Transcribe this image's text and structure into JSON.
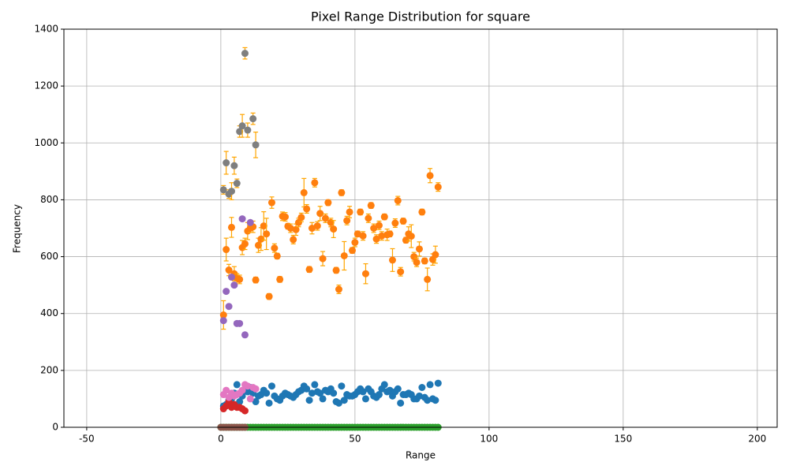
{
  "chart_data": {
    "type": "scatter",
    "title": "Pixel Range Distribution for square",
    "x_label": "Range",
    "y_label": "Frequency",
    "xlim": [
      -58.5,
      207.4
    ],
    "ylim": [
      0,
      1400
    ],
    "xticks": [
      -50,
      0,
      50,
      100,
      150,
      200
    ],
    "yticks": [
      0,
      200,
      400,
      600,
      800,
      1000,
      1200,
      1400
    ],
    "grid": true,
    "errorbar_color": "#ffa500",
    "x": [
      1,
      2,
      3,
      4,
      5,
      6,
      7,
      8,
      9,
      10,
      11,
      12,
      13,
      14,
      15,
      16,
      17,
      18,
      19,
      20,
      21,
      22,
      23,
      24,
      25,
      26,
      27,
      28,
      29,
      30,
      31,
      32,
      33,
      34,
      35,
      36,
      37,
      38,
      39,
      40,
      41,
      42,
      43,
      44,
      45,
      46,
      47,
      48,
      49,
      50,
      51,
      52,
      53,
      54,
      55,
      56,
      57,
      58,
      59,
      60,
      61,
      62,
      63,
      64,
      65,
      66,
      67,
      68,
      69,
      70,
      71,
      72,
      73,
      74,
      75,
      76,
      77,
      78,
      79,
      80,
      81
    ],
    "series": [
      {
        "color": "#1f77b4",
        "values": [
          75,
          80,
          95,
          100,
          120,
          150,
          90,
          110,
          130,
          125,
          140,
          120,
          90,
          110,
          115,
          130,
          120,
          85,
          145,
          110,
          100,
          95,
          110,
          120,
          115,
          110,
          105,
          115,
          125,
          130,
          145,
          135,
          95,
          120,
          150,
          125,
          120,
          100,
          130,
          125,
          135,
          120,
          90,
          85,
          145,
          95,
          115,
          110,
          110,
          115,
          125,
          135,
          125,
          100,
          135,
          125,
          110,
          105,
          115,
          135,
          150,
          125,
          130,
          110,
          125,
          135,
          85,
          115,
          115,
          120,
          115,
          100,
          100,
          110,
          140,
          105,
          95,
          150,
          100,
          95,
          155
        ]
      },
      {
        "color": "#ff7f0e",
        "values": [
          395,
          625,
          553,
          703,
          540,
          525,
          520,
          632,
          645,
          690,
          700,
          705,
          518,
          640,
          662,
          708,
          680,
          460,
          790,
          630,
          602,
          520,
          742,
          740,
          707,
          700,
          660,
          695,
          720,
          738,
          825,
          768,
          555,
          700,
          860,
          708,
          752,
          593,
          735,
          790,
          720,
          697,
          552,
          485,
          825,
          603,
          727,
          757,
          622,
          650,
          680,
          757,
          673,
          540,
          735,
          780,
          700,
          662,
          710,
          673,
          740,
          677,
          680,
          588,
          718,
          797,
          547,
          725,
          658,
          680,
          672,
          600,
          580,
          627,
          757,
          585,
          520,
          885,
          590,
          607,
          845
        ],
        "errors": [
          50,
          40,
          20,
          35,
          25,
          15,
          15,
          25,
          20,
          30,
          15,
          20,
          10,
          25,
          40,
          50,
          55,
          10,
          20,
          15,
          10,
          10,
          15,
          15,
          10,
          15,
          15,
          20,
          15,
          15,
          50,
          15,
          10,
          20,
          15,
          15,
          25,
          25,
          15,
          10,
          15,
          30,
          10,
          15,
          10,
          50,
          15,
          20,
          10,
          15,
          10,
          10,
          15,
          35,
          15,
          10,
          15,
          15,
          15,
          15,
          10,
          20,
          10,
          40,
          15,
          15,
          15,
          10,
          10,
          25,
          40,
          15,
          15,
          25,
          10,
          10,
          40,
          25,
          20,
          30,
          15
        ]
      },
      {
        "color": "#2ca02c",
        "x": [
          0,
          1,
          2,
          3,
          4,
          5,
          6,
          7,
          8,
          9,
          10,
          11,
          12,
          13,
          14,
          15,
          16,
          17,
          18,
          19,
          20,
          21,
          22,
          23,
          24,
          25,
          26,
          27,
          28,
          29,
          30,
          31,
          32,
          33,
          34,
          35,
          36,
          37,
          38,
          39,
          40,
          41,
          42,
          43,
          44,
          45,
          46,
          47,
          48,
          49,
          50,
          51,
          52,
          53,
          54,
          55,
          56,
          57,
          58,
          59,
          60,
          61,
          62,
          63,
          64,
          65,
          66,
          67,
          68,
          69,
          70,
          71,
          72,
          73,
          74,
          75,
          76,
          77,
          78,
          79,
          80,
          81
        ],
        "values": [
          0,
          0,
          0,
          0,
          0,
          0,
          0,
          0,
          0,
          0,
          0,
          0,
          0,
          0,
          0,
          0,
          0,
          0,
          0,
          0,
          0,
          0,
          0,
          0,
          0,
          0,
          0,
          0,
          0,
          0,
          0,
          0,
          0,
          0,
          0,
          0,
          0,
          0,
          0,
          0,
          0,
          0,
          0,
          0,
          0,
          0,
          0,
          0,
          0,
          0,
          0,
          0,
          0,
          0,
          0,
          0,
          0,
          0,
          0,
          0,
          0,
          0,
          0,
          0,
          0,
          0,
          0,
          0,
          0,
          0,
          0,
          0,
          0,
          0,
          0,
          0,
          0,
          0,
          0,
          0,
          0,
          0
        ]
      },
      {
        "color": "#d62728",
        "x": [
          1,
          2,
          3,
          4,
          5,
          6,
          7,
          8,
          9
        ],
        "values": [
          65,
          75,
          90,
          70,
          80,
          70,
          70,
          65,
          58
        ]
      },
      {
        "color": "#9467bd",
        "x": [
          1,
          2,
          3,
          4,
          5,
          6,
          7,
          8,
          9,
          11
        ],
        "values": [
          375,
          478,
          425,
          528,
          500,
          365,
          365,
          733,
          325,
          720
        ]
      },
      {
        "color": "#8c564b",
        "x": [
          0,
          1,
          2,
          3,
          4,
          5,
          6,
          7,
          8,
          9
        ],
        "values": [
          0,
          0,
          0,
          0,
          0,
          0,
          0,
          0,
          0,
          0
        ]
      },
      {
        "color": "#e377c2",
        "x": [
          1,
          2,
          3,
          4,
          5,
          6,
          7,
          8,
          9,
          10,
          11,
          12,
          13
        ],
        "values": [
          115,
          130,
          105,
          120,
          110,
          115,
          120,
          130,
          150,
          145,
          100,
          140,
          135
        ]
      },
      {
        "color": "#7f7f7f",
        "x": [
          1,
          2,
          3,
          4,
          5,
          6,
          7,
          8,
          9,
          10,
          12,
          13
        ],
        "values": [
          835,
          930,
          820,
          830,
          920,
          858,
          1040,
          1060,
          1315,
          1045,
          1085,
          993
        ],
        "errors": [
          15,
          40,
          15,
          30,
          30,
          15,
          20,
          40,
          20,
          25,
          20,
          45
        ]
      }
    ]
  }
}
